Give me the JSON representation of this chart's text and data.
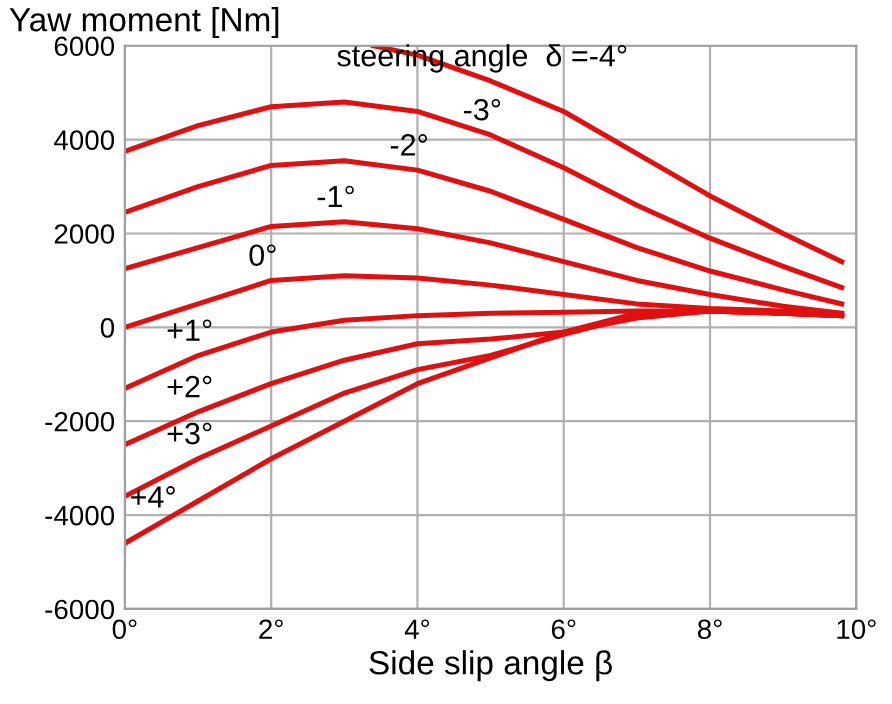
{
  "chart_data": {
    "type": "line",
    "ylabel": "Yaw moment [Nm]",
    "xlabel": "Side slip angle β",
    "series": [
      {
        "color": "#e01010",
        "x": [
          3.4,
          4,
          5,
          6,
          7,
          8,
          9,
          9.8
        ],
        "values": [
          6000,
          5800,
          5250,
          4600,
          3700,
          2800,
          2000,
          1400
        ]
      },
      {
        "color": "#e01010",
        "x": [
          0,
          1,
          2,
          3,
          4,
          5,
          6,
          7,
          8,
          9,
          9.8
        ],
        "values": [
          3750,
          4300,
          4700,
          4800,
          4600,
          4100,
          3400,
          2600,
          1900,
          1300,
          850
        ]
      },
      {
        "color": "#e01010",
        "x": [
          0,
          1,
          2,
          3,
          4,
          5,
          6,
          7,
          8,
          9,
          9.8
        ],
        "values": [
          2450,
          3000,
          3450,
          3550,
          3350,
          2900,
          2300,
          1700,
          1200,
          800,
          500
        ]
      },
      {
        "color": "#e01010",
        "x": [
          0,
          1,
          2,
          3,
          4,
          5,
          6,
          7,
          8,
          9,
          9.8
        ],
        "values": [
          1250,
          1700,
          2150,
          2250,
          2100,
          1800,
          1400,
          1000,
          700,
          450,
          300
        ]
      },
      {
        "color": "#e01010",
        "x": [
          0,
          1,
          2,
          3,
          4,
          5,
          6,
          7,
          8,
          9,
          9.8
        ],
        "values": [
          0,
          500,
          1000,
          1100,
          1050,
          900,
          700,
          500,
          400,
          350,
          300
        ]
      },
      {
        "color": "#e01010",
        "x": [
          0,
          1,
          2,
          3,
          4,
          5,
          6,
          7,
          8,
          9,
          9.8
        ],
        "values": [
          -1300,
          -600,
          -100,
          150,
          250,
          300,
          320,
          350,
          350,
          300,
          250
        ]
      },
      {
        "color": "#e01010",
        "x": [
          0,
          1,
          2,
          3,
          4,
          5,
          6,
          7,
          8,
          9,
          9.8
        ],
        "values": [
          -2500,
          -1800,
          -1200,
          -700,
          -350,
          -250,
          -100,
          200,
          350,
          300,
          250
        ]
      },
      {
        "color": "#e01010",
        "x": [
          0,
          1,
          2,
          3,
          4,
          5,
          6,
          7,
          8,
          9,
          9.8
        ],
        "values": [
          -3600,
          -2800,
          -2100,
          -1400,
          -900,
          -600,
          -150,
          250,
          350,
          300,
          250
        ]
      },
      {
        "color": "#e01010",
        "x": [
          0,
          0.5,
          1,
          2,
          3,
          4,
          5,
          6,
          7,
          8,
          9,
          9.8
        ],
        "values": [
          -4600,
          -4150,
          -3700,
          -2800,
          -2000,
          -1200,
          -650,
          -100,
          300,
          350,
          300,
          250
        ]
      }
    ],
    "annotations": [
      {
        "text": "steering angle  δ =-4°",
        "x": 5,
        "y": 5250
      },
      {
        "text": "-3°",
        "x": 5,
        "y": 4100
      },
      {
        "text": "-2°",
        "x": 4,
        "y": 3350
      },
      {
        "text": "-1°",
        "x": 3,
        "y": 2250
      },
      {
        "text": "0°",
        "x": 2,
        "y": 1000
      },
      {
        "text": "+1°",
        "x": 1,
        "y": -600
      },
      {
        "text": "+2°",
        "x": 1,
        "y": -1800
      },
      {
        "text": "+3°",
        "x": 1,
        "y": -2800
      },
      {
        "text": "+4°",
        "x": 0.5,
        "y": -4150
      }
    ],
    "xlim": [
      0,
      10
    ],
    "xticks": [
      {
        "value": 0,
        "label": "0°"
      },
      {
        "value": 2,
        "label": "2°"
      },
      {
        "value": 4,
        "label": "4°"
      },
      {
        "value": 6,
        "label": "6°"
      },
      {
        "value": 8,
        "label": "8°"
      },
      {
        "value": 10,
        "label": "10°"
      }
    ],
    "ylim": [
      -6000,
      6000
    ],
    "yticks": [
      -6000,
      -4000,
      -2000,
      0,
      2000,
      4000,
      6000
    ],
    "grid": true,
    "marker": "none",
    "line_style": "solid"
  }
}
